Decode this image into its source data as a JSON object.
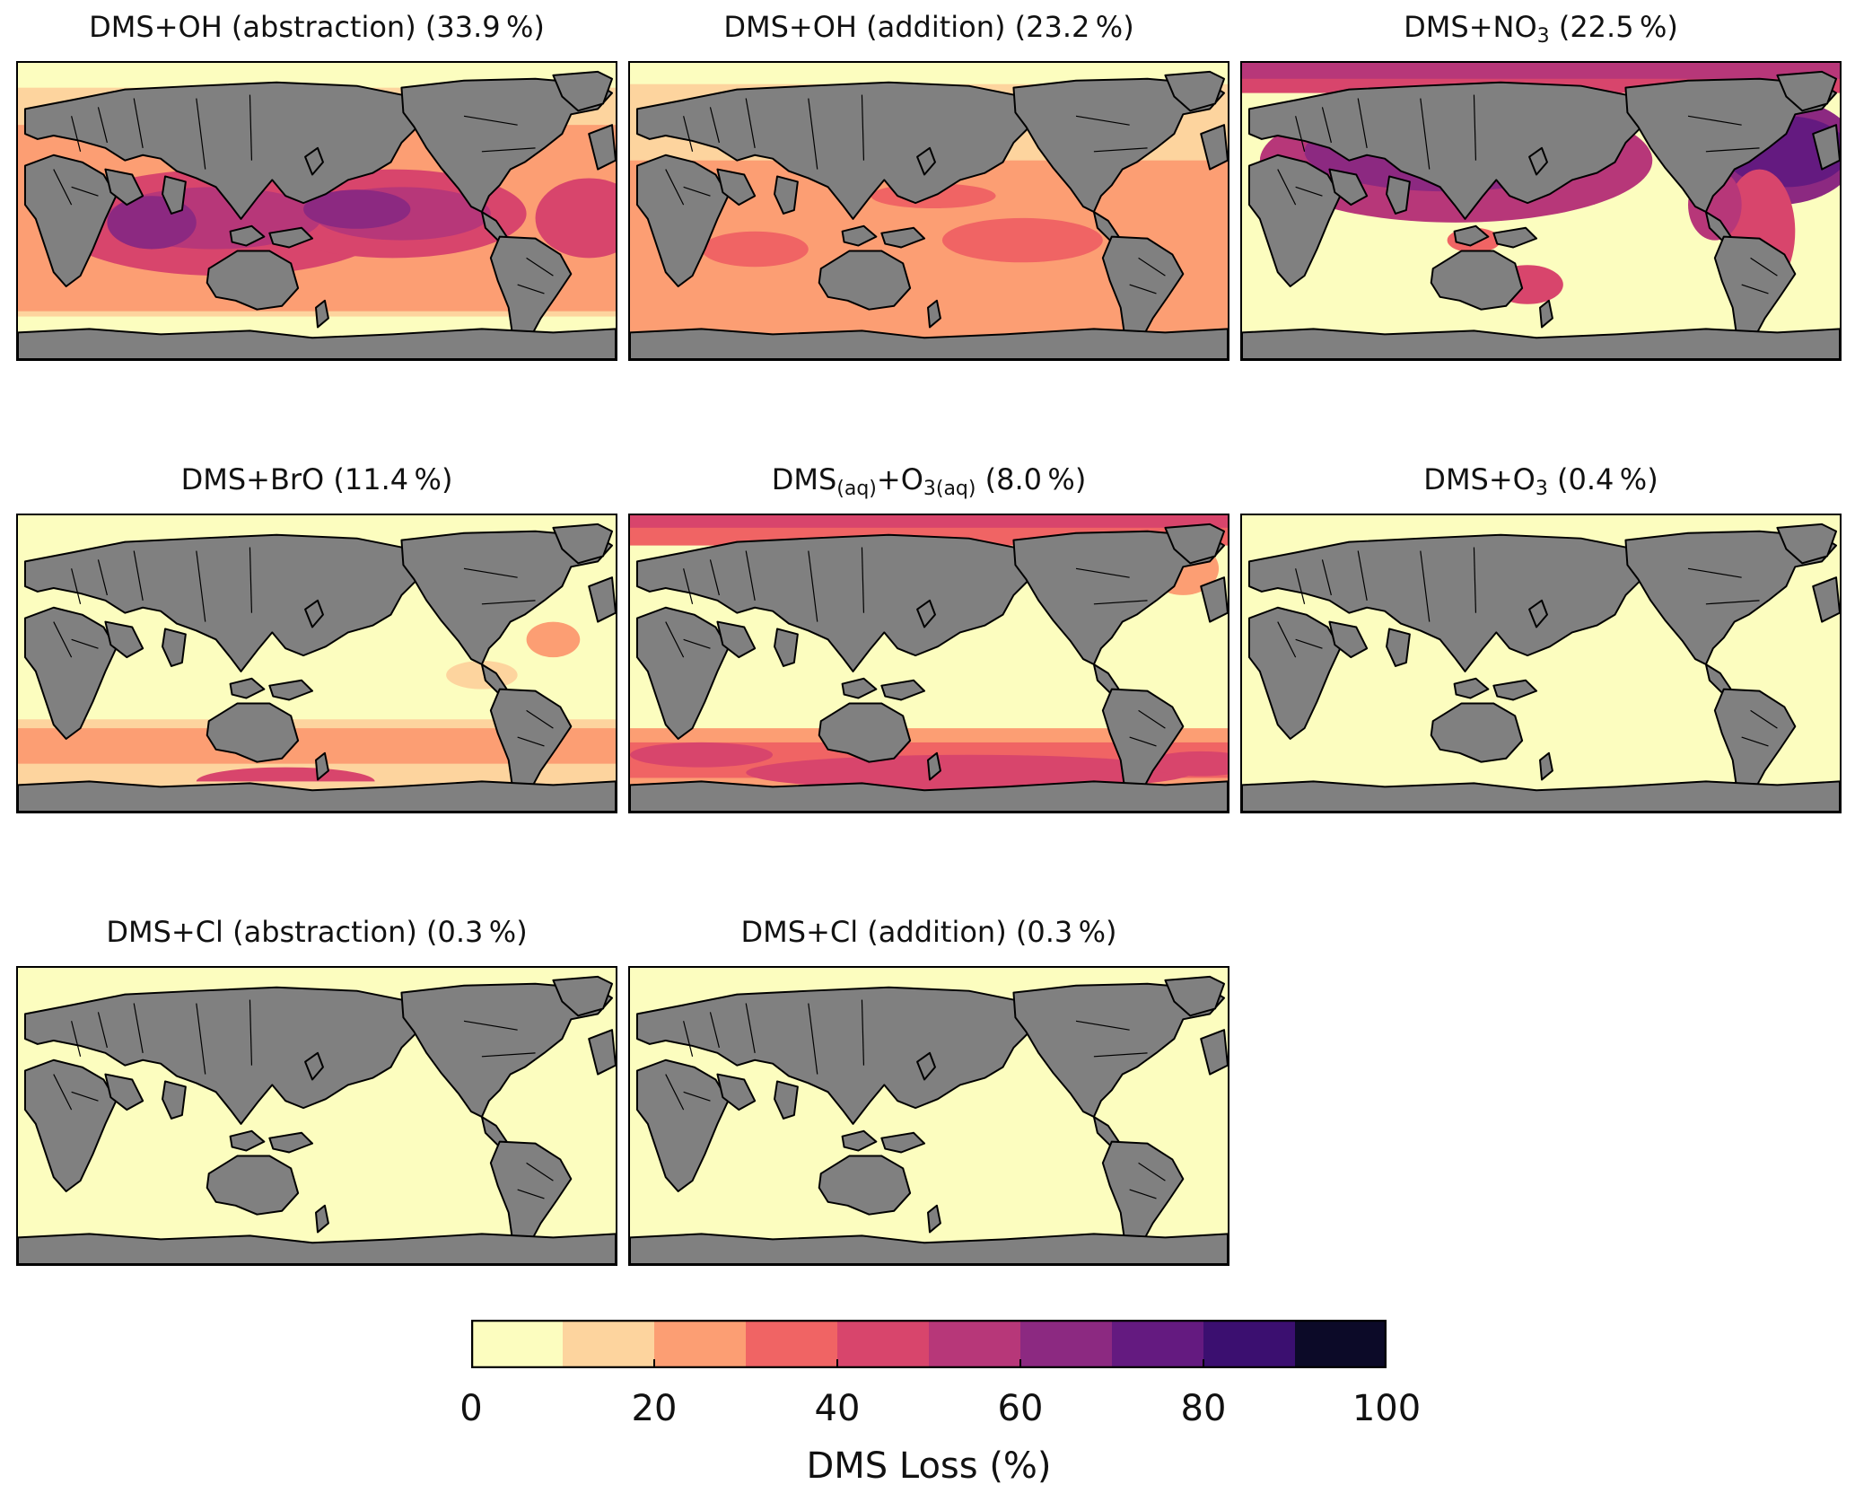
{
  "figure": {
    "colorbar": {
      "label": "DMS Loss (%)",
      "ticks": [
        "0",
        "20",
        "40",
        "60",
        "80",
        "100"
      ],
      "range": [
        0,
        100
      ],
      "bin_width": 10,
      "colors": [
        "#fcfdbf",
        "#fdd49e",
        "#fc9e73",
        "#f06464",
        "#d8456c",
        "#b73779",
        "#8c2981",
        "#641a80",
        "#3b0f70",
        "#0c0a28"
      ]
    },
    "panels": [
      {
        "title_main": "DMS+OH (abstraction) (33.9 %)",
        "style": "oh_abs"
      },
      {
        "title_main": "DMS+OH (addition) (23.2 %)",
        "style": "oh_add"
      },
      {
        "title_pre": "DMS+NO",
        "title_sub": "3",
        "title_post": " (22.5 %)",
        "style": "no3"
      },
      {
        "title_main": "DMS+BrO (11.4 %)",
        "style": "bro"
      },
      {
        "title_pre": "DMS",
        "title_sub": "(aq)",
        "title_mid": "+O",
        "title_sub2": "3(aq)",
        "title_post": " (8.0 %)",
        "style": "o3aq"
      },
      {
        "title_pre": "DMS+O",
        "title_sub": "3",
        "title_post": " (0.4 %)",
        "style": "o3"
      },
      {
        "title_main": "DMS+Cl (abstraction) (0.3 %)",
        "style": "cl"
      },
      {
        "title_main": "DMS+Cl (addition) (0.3 %)",
        "style": "cl"
      }
    ],
    "land_color": "#808080",
    "ocean_base_color": "#fcfdbf"
  }
}
